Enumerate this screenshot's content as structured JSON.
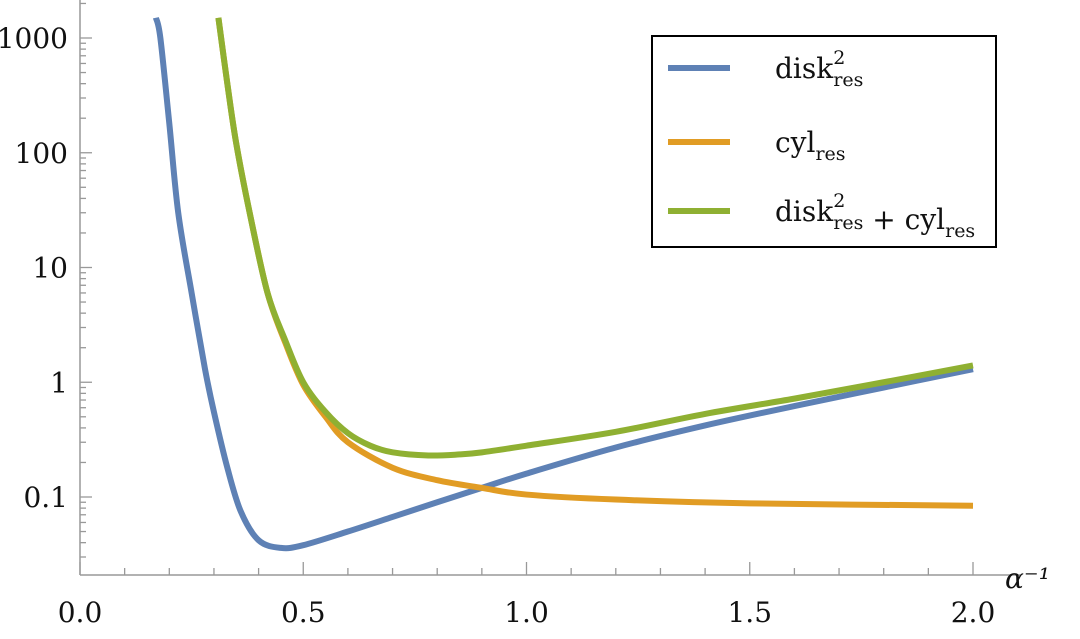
{
  "chart_data": {
    "type": "line",
    "title": "",
    "xlabel": "α⁻¹",
    "ylabel": "",
    "xlim": [
      0.0,
      2.0
    ],
    "ylim": [
      0.02,
      2000
    ],
    "yscale": "log",
    "grid": false,
    "legend_position": "top-right",
    "x_ticks": [
      0.0,
      0.5,
      1.0,
      1.5,
      2.0
    ],
    "x_tick_labels": [
      "0.0",
      "0.5",
      "1.0",
      "1.5",
      "2.0"
    ],
    "y_ticks": [
      0.1,
      1,
      10,
      100,
      1000
    ],
    "y_tick_labels": [
      "0.1",
      "1",
      "10",
      "100",
      "1000"
    ],
    "series": [
      {
        "name": "disk²res",
        "legend": {
          "base": "disk",
          "sup": "2",
          "sub": "res"
        },
        "color": "#5E81B5",
        "x": [
          0.17,
          0.18,
          0.2,
          0.22,
          0.25,
          0.28,
          0.3,
          0.33,
          0.36,
          0.4,
          0.45,
          0.5,
          0.6,
          0.7,
          0.8,
          0.9,
          1.0,
          1.2,
          1.4,
          1.6,
          1.8,
          2.0
        ],
        "y": [
          1500,
          1000,
          180,
          30,
          6,
          1.3,
          0.55,
          0.18,
          0.075,
          0.042,
          0.036,
          0.038,
          0.05,
          0.067,
          0.09,
          0.12,
          0.16,
          0.27,
          0.42,
          0.62,
          0.9,
          1.3
        ]
      },
      {
        "name": "cylres",
        "legend": {
          "base": "cyl",
          "sup": "",
          "sub": "res"
        },
        "color": "#E19C24",
        "x": [
          0.31,
          0.33,
          0.35,
          0.38,
          0.42,
          0.46,
          0.5,
          0.55,
          0.6,
          0.7,
          0.8,
          0.9,
          1.0,
          1.2,
          1.5,
          2.0
        ],
        "y": [
          1500,
          400,
          120,
          30,
          6,
          2.2,
          0.95,
          0.5,
          0.3,
          0.18,
          0.14,
          0.12,
          0.105,
          0.095,
          0.088,
          0.084
        ]
      },
      {
        "name": "disk²res + cylres",
        "legend": {
          "base": "disk",
          "sup": "2",
          "sub": "res",
          "plus": "+ cyl",
          "sub2": "res"
        },
        "color": "#8FB032",
        "x": [
          0.31,
          0.33,
          0.35,
          0.38,
          0.42,
          0.46,
          0.5,
          0.55,
          0.6,
          0.65,
          0.7,
          0.78,
          0.85,
          0.9,
          1.0,
          1.2,
          1.4,
          1.6,
          1.8,
          2.0
        ],
        "y": [
          1500,
          400,
          120,
          30,
          6,
          2.3,
          1.0,
          0.55,
          0.36,
          0.28,
          0.245,
          0.23,
          0.235,
          0.245,
          0.28,
          0.37,
          0.53,
          0.72,
          1.0,
          1.4
        ]
      }
    ]
  }
}
